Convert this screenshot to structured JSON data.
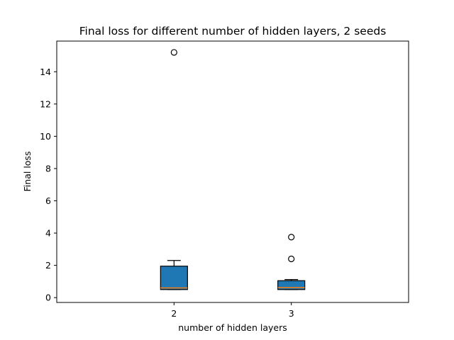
{
  "chart_data": {
    "type": "box",
    "title": "Final loss for different number of hidden layers, 2 seeds",
    "xlabel": "number of hidden layers",
    "ylabel": "Final loss",
    "categories": [
      "2",
      "3"
    ],
    "ylim": [
      -0.3,
      15.9
    ],
    "yticks": [
      0,
      2,
      4,
      6,
      8,
      10,
      12,
      14
    ],
    "grid": false,
    "box_color": "#1f77b4",
    "median_color": "#ff7f0e",
    "boxes": [
      {
        "label": "2",
        "whislo": 0.5,
        "q1": 0.5,
        "median": 0.6,
        "q3": 1.95,
        "whishi": 2.3,
        "fliers": [
          15.2
        ]
      },
      {
        "label": "3",
        "whislo": 0.5,
        "q1": 0.5,
        "median": 0.62,
        "q3": 1.05,
        "whishi": 1.12,
        "fliers": [
          2.4,
          3.75
        ]
      }
    ]
  }
}
